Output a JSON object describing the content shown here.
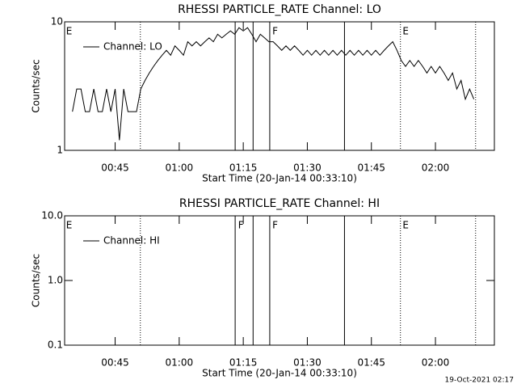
{
  "chart_data": [
    {
      "type": "line",
      "title": "RHESSI PARTICLE_RATE Channel: LO",
      "ylabel": "Counts/sec",
      "xlabel": "Start Time (20-Jan-14 00:33:10)",
      "log_y": true,
      "ylim": [
        1,
        10
      ],
      "yticks": [
        1,
        10
      ],
      "xlim": [
        33.17,
        133.8
      ],
      "xticks": [
        {
          "value": 45,
          "label": "00:45"
        },
        {
          "value": 60,
          "label": "01:00"
        },
        {
          "value": 75,
          "label": "01:15"
        },
        {
          "value": 90,
          "label": "01:30"
        },
        {
          "value": 105,
          "label": "01:45"
        },
        {
          "value": 120,
          "label": "02:00"
        }
      ],
      "legend": "upper left",
      "x": [
        35,
        36,
        37,
        38,
        39,
        40,
        41,
        42,
        43,
        44,
        45,
        46,
        47,
        48,
        49,
        50,
        51,
        52,
        53,
        54,
        55,
        56,
        57,
        58,
        59,
        60,
        61,
        62,
        63,
        64,
        65,
        66,
        67,
        68,
        69,
        70,
        71,
        72,
        73,
        74,
        75,
        76,
        77,
        78,
        79,
        80,
        81,
        82,
        83,
        84,
        85,
        86,
        87,
        88,
        89,
        90,
        91,
        92,
        93,
        94,
        95,
        96,
        97,
        98,
        99,
        100,
        101,
        102,
        103,
        104,
        105,
        106,
        107,
        108,
        109,
        110,
        111,
        112,
        113,
        114,
        115,
        116,
        117,
        118,
        119,
        120,
        121,
        122,
        123,
        124,
        125,
        126,
        127,
        128,
        129
      ],
      "series": [
        {
          "name": "Channel: LO",
          "color": "#000000",
          "values": [
            2,
            3,
            3,
            2,
            2,
            3,
            2,
            2,
            3,
            2,
            3,
            1.2,
            3,
            2,
            2,
            2,
            3,
            3.5,
            4,
            4.5,
            5,
            5.5,
            6,
            5.5,
            6.5,
            6,
            5.5,
            7,
            6.5,
            7,
            6.5,
            7,
            7.5,
            7,
            8,
            7.5,
            8,
            8.5,
            8,
            9,
            8.5,
            9,
            8,
            7,
            8,
            7.5,
            7,
            7,
            6.5,
            6,
            6.5,
            6,
            6.5,
            6,
            5.5,
            6,
            5.5,
            6,
            5.5,
            6,
            5.5,
            6,
            5.5,
            6,
            5.5,
            6,
            5.5,
            6,
            5.5,
            6,
            5.5,
            6,
            5.5,
            6,
            6.5,
            7,
            6,
            5,
            4.5,
            5,
            4.5,
            5,
            4.5,
            4,
            4.5,
            4,
            4.5,
            4,
            3.5,
            4,
            3,
            3.5,
            2.5,
            3,
            2.5
          ]
        }
      ],
      "vlines": [
        {
          "x": 50.9,
          "style": "dotted"
        },
        {
          "x": 73.1,
          "style": "solid"
        },
        {
          "x": 77.3,
          "style": "solid"
        },
        {
          "x": 81.2,
          "style": "solid"
        },
        {
          "x": 98.7,
          "style": "solid"
        },
        {
          "x": 111.8,
          "style": "dotted"
        },
        {
          "x": 129.4,
          "style": "dotted"
        }
      ],
      "flags": [
        {
          "x": 33.5,
          "label": "E"
        },
        {
          "x": 81.8,
          "label": "F"
        },
        {
          "x": 112.3,
          "label": "E"
        }
      ]
    },
    {
      "type": "line",
      "title": "RHESSI PARTICLE_RATE Channel: HI",
      "ylabel": "Counts/sec",
      "xlabel": "Start Time (20-Jan-14 00:33:10)",
      "log_y": true,
      "ylim": [
        0.1,
        10
      ],
      "yticks": [
        0.1,
        {
          "value": 1,
          "label": "1.0"
        },
        {
          "value": 10,
          "label": "10.0"
        }
      ],
      "xlim": [
        33.17,
        133.8
      ],
      "xticks": [
        {
          "value": 45,
          "label": "00:45"
        },
        {
          "value": 60,
          "label": "01:00"
        },
        {
          "value": 75,
          "label": "01:15"
        },
        {
          "value": 90,
          "label": "01:30"
        },
        {
          "value": 105,
          "label": "01:45"
        },
        {
          "value": 120,
          "label": "02:00"
        }
      ],
      "legend": "upper left",
      "x": [],
      "series": [
        {
          "name": "Channel: HI",
          "color": "#000000",
          "values": []
        }
      ],
      "vlines": [
        {
          "x": 50.9,
          "style": "dotted"
        },
        {
          "x": 73.1,
          "style": "solid"
        },
        {
          "x": 77.3,
          "style": "solid"
        },
        {
          "x": 81.2,
          "style": "solid"
        },
        {
          "x": 98.7,
          "style": "solid"
        },
        {
          "x": 111.8,
          "style": "dotted"
        },
        {
          "x": 129.4,
          "style": "dotted"
        }
      ],
      "flags": [
        {
          "x": 33.5,
          "label": "E"
        },
        {
          "x": 73.8,
          "label": "F"
        },
        {
          "x": 81.8,
          "label": "F"
        },
        {
          "x": 112.3,
          "label": "E"
        }
      ]
    }
  ],
  "timestamp": "19-Oct-2021 02:17"
}
